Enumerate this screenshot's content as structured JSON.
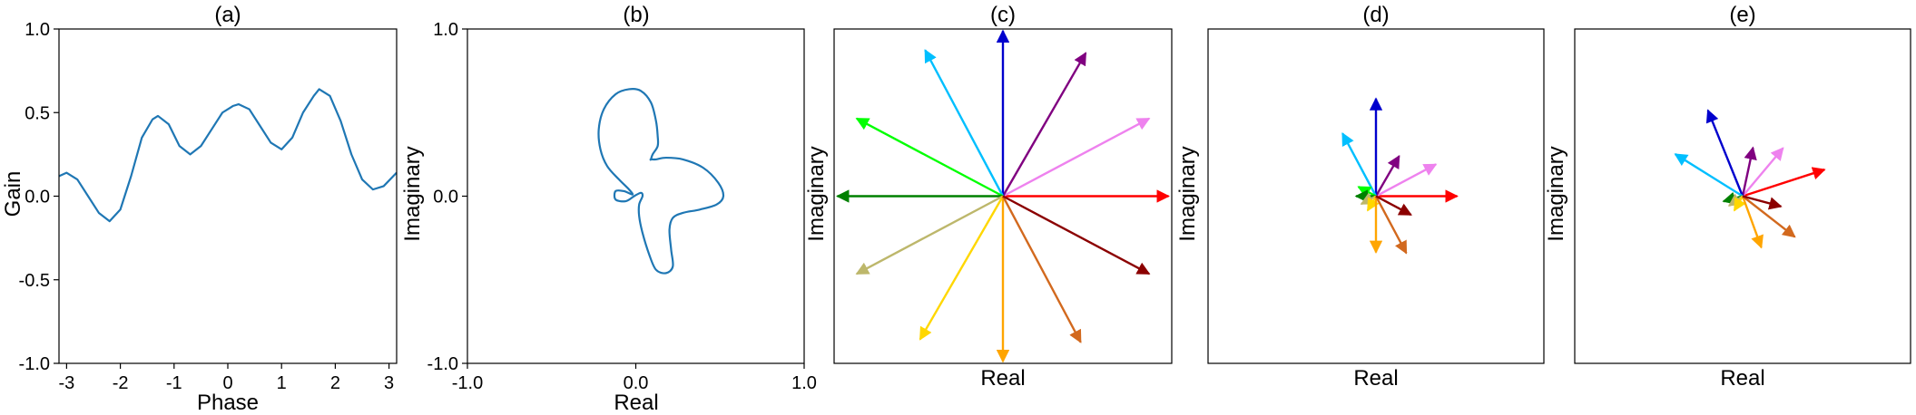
{
  "colors": {
    "curve": "#1f77b4",
    "arrows": [
      "#ff0000",
      "#ff00ff",
      "#ee82ee",
      "#800080",
      "#0000cd",
      "#00bfff",
      "#00ff00",
      "#008000",
      "#bdb76b",
      "#ffd700",
      "#ffa500",
      "#d2691e",
      "#8b0000"
    ]
  },
  "chart_data": [
    {
      "type": "line",
      "title": "(a)",
      "xlabel": "Phase",
      "ylabel": "Gain",
      "xlim": [
        -3.1416,
        3.1416
      ],
      "ylim": [
        -1.0,
        1.0
      ],
      "xticks": [
        "-3",
        "-2",
        "-1",
        "0",
        "1",
        "2",
        "3"
      ],
      "yticks": [
        "-1.0",
        "-0.5",
        "0.0",
        "0.5",
        "1.0"
      ],
      "grid": false,
      "series": [
        {
          "x": [
            -3.14,
            -3.0,
            -2.8,
            -2.6,
            -2.4,
            -2.2,
            -2.0,
            -1.8,
            -1.6,
            -1.4,
            -1.3,
            -1.1,
            -0.9,
            -0.7,
            -0.5,
            -0.3,
            -0.1,
            0.1,
            0.2,
            0.4,
            0.6,
            0.8,
            1.0,
            1.2,
            1.4,
            1.6,
            1.7,
            1.9,
            2.1,
            2.3,
            2.5,
            2.7,
            2.9,
            3.14
          ],
          "y": [
            0.12,
            0.14,
            0.1,
            0.0,
            -0.1,
            -0.15,
            -0.08,
            0.12,
            0.35,
            0.46,
            0.48,
            0.43,
            0.3,
            0.25,
            0.3,
            0.4,
            0.5,
            0.54,
            0.55,
            0.52,
            0.42,
            0.32,
            0.28,
            0.35,
            0.5,
            0.6,
            0.64,
            0.6,
            0.45,
            0.25,
            0.1,
            0.04,
            0.06,
            0.14
          ]
        }
      ]
    },
    {
      "type": "line",
      "title": "(b)",
      "xlabel": "Real",
      "ylabel": "Imaginary",
      "xlim": [
        -1.0,
        1.0
      ],
      "ylim": [
        -1.0,
        1.0
      ],
      "xticks": [
        "-1.0",
        "0.0",
        "1.0"
      ],
      "yticks": [
        "-1.0",
        "0.0",
        "1.0"
      ],
      "grid": false,
      "series": [
        {
          "x": [
            0.09,
            0.12,
            0.18,
            0.28,
            0.4,
            0.49,
            0.52,
            0.48,
            0.38,
            0.28,
            0.22,
            0.2,
            0.21,
            0.22,
            0.18,
            0.12,
            0.08,
            0.04,
            0.02,
            0.02,
            0.04,
            0.03,
            -0.01,
            -0.06,
            -0.12,
            -0.12,
            -0.07,
            -0.02,
            -0.04,
            -0.1,
            -0.17,
            -0.21,
            -0.22,
            -0.19,
            -0.12,
            -0.04,
            0.03,
            0.09,
            0.12,
            0.13,
            0.13,
            0.1,
            0.09
          ],
          "x_note": "",
          "y": [
            0.22,
            0.22,
            0.23,
            0.22,
            0.17,
            0.08,
            0.0,
            -0.05,
            -0.08,
            -0.1,
            -0.13,
            -0.2,
            -0.32,
            -0.42,
            -0.46,
            -0.44,
            -0.35,
            -0.22,
            -0.12,
            -0.05,
            0.0,
            0.02,
            0.0,
            -0.03,
            -0.02,
            0.03,
            0.03,
            0.01,
            0.04,
            0.1,
            0.18,
            0.28,
            0.4,
            0.52,
            0.61,
            0.64,
            0.63,
            0.56,
            0.45,
            0.36,
            0.3,
            0.25,
            0.22
          ]
        }
      ]
    },
    {
      "type": "vector",
      "title": "(c)",
      "xlabel": "Real",
      "ylabel": "Imaginary",
      "vectors": [
        {
          "r": 1.0,
          "angle_deg": 0
        },
        {
          "r": 1.0,
          "angle_deg": 28
        },
        {
          "r": 1.0,
          "angle_deg": 60
        },
        {
          "r": 1.0,
          "angle_deg": 90
        },
        {
          "r": 1.0,
          "angle_deg": 118
        },
        {
          "r": 1.0,
          "angle_deg": 152
        },
        {
          "r": 1.0,
          "angle_deg": 180
        },
        {
          "r": 1.0,
          "angle_deg": 208
        },
        {
          "r": 1.0,
          "angle_deg": 240
        },
        {
          "r": 1.0,
          "angle_deg": 270
        },
        {
          "r": 1.0,
          "angle_deg": 298
        },
        {
          "r": 1.0,
          "angle_deg": 332
        }
      ]
    },
    {
      "type": "vector",
      "title": "(d)",
      "xlabel": "Real",
      "ylabel": "Imaginary",
      "vectors": [
        {
          "r": 0.49,
          "angle_deg": 0
        },
        {
          "r": 0.41,
          "angle_deg": 28
        },
        {
          "r": 0.28,
          "angle_deg": 60
        },
        {
          "r": 0.59,
          "angle_deg": 90
        },
        {
          "r": 0.43,
          "angle_deg": 118
        },
        {
          "r": 0.12,
          "angle_deg": 152
        },
        {
          "r": 0.12,
          "angle_deg": 180
        },
        {
          "r": 0.1,
          "angle_deg": 208
        },
        {
          "r": 0.1,
          "angle_deg": 240
        },
        {
          "r": 0.34,
          "angle_deg": 270
        },
        {
          "r": 0.39,
          "angle_deg": 298
        },
        {
          "r": 0.24,
          "angle_deg": 332
        }
      ]
    },
    {
      "type": "vector",
      "title": "(e)",
      "xlabel": "Real",
      "ylabel": "Imaginary",
      "vectors": [
        {
          "r": 0.52,
          "angle_deg": 18
        },
        {
          "r": 0.38,
          "angle_deg": 50
        },
        {
          "r": 0.3,
          "angle_deg": 78
        },
        {
          "r": 0.56,
          "angle_deg": 112
        },
        {
          "r": 0.48,
          "angle_deg": 148
        },
        {
          "r": 0.12,
          "angle_deg": 195
        },
        {
          "r": 0.1,
          "angle_deg": 215
        },
        {
          "r": 0.1,
          "angle_deg": 240
        },
        {
          "r": 0.33,
          "angle_deg": 290
        },
        {
          "r": 0.4,
          "angle_deg": 322
        },
        {
          "r": 0.24,
          "angle_deg": 345
        }
      ]
    }
  ]
}
